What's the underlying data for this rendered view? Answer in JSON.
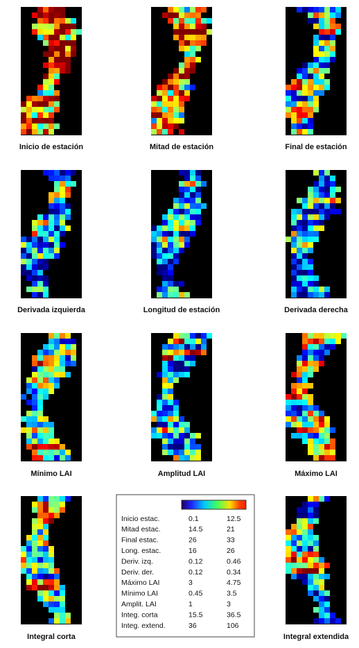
{
  "panels": [
    {
      "label": "Inicio de estación"
    },
    {
      "label": "Mitad de estación"
    },
    {
      "label": "Final de estación"
    },
    {
      "label": "Derivada izquierda"
    },
    {
      "label": "Longitud de estación"
    },
    {
      "label": "Derivada derecha"
    },
    {
      "label": "Mínimo LAI"
    },
    {
      "label": "Amplitud LAI"
    },
    {
      "label": "Máximo LAI"
    },
    {
      "label": "Integral corta"
    },
    {
      "label": "Integral extendida"
    }
  ],
  "legend": {
    "rows": [
      [
        "Inicio estac.",
        "0.1",
        "12.5"
      ],
      [
        "Mitad estac.",
        "14.5",
        "21"
      ],
      [
        "Final estac.",
        "26",
        "33"
      ],
      [
        "Long. estac.",
        "16",
        "26"
      ],
      [
        "Deriv. izq.",
        "0.12",
        "0.46"
      ],
      [
        "Deriv. der.",
        "0.12",
        "0.34"
      ],
      [
        "Máximo LAI",
        "3",
        "4.75"
      ],
      [
        "Mínimo LAI",
        "0.45",
        "3.5"
      ],
      [
        "Amplit. LAI",
        "1",
        "3"
      ],
      [
        "Integ. corta",
        "15.5",
        "36.5"
      ],
      [
        "Integ. extend.",
        "36",
        "106"
      ]
    ]
  }
}
